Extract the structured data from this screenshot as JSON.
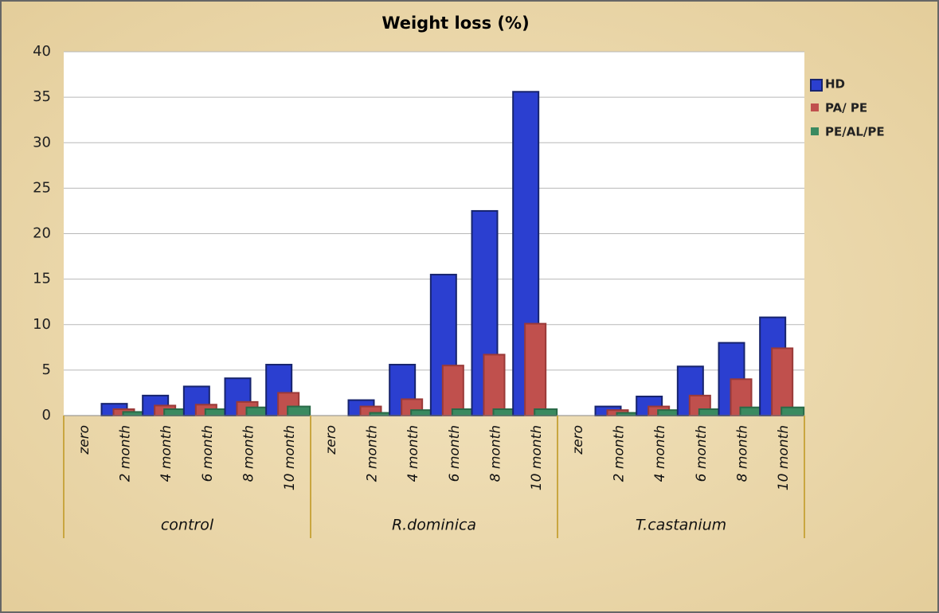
{
  "chart_data": {
    "type": "bar",
    "title": "Weight loss (%)",
    "categories": [
      "zero",
      "2 month",
      "4 month",
      "6 month",
      "8 month",
      "10 month",
      "zero",
      "2 month",
      "4 month",
      "6 month",
      "8 month",
      "10 month",
      "zero",
      "2 month",
      "4 month",
      "6 month",
      "8 month",
      "10 month"
    ],
    "groups": [
      "control",
      "R.dominica",
      "T.castanium"
    ],
    "series": [
      {
        "name": "HD",
        "color": "#2b3fd0",
        "values": [
          0,
          1.3,
          2.2,
          3.2,
          4.1,
          5.6,
          0,
          1.7,
          5.6,
          15.5,
          22.5,
          35.6,
          0,
          1.0,
          2.1,
          5.4,
          8.0,
          10.8
        ]
      },
      {
        "name": "PA/ PE",
        "color": "#c0504d",
        "values": [
          0,
          0.7,
          1.1,
          1.2,
          1.5,
          2.5,
          0,
          1.0,
          1.8,
          5.5,
          6.7,
          10.1,
          0,
          0.6,
          1.0,
          2.2,
          4.0,
          7.4
        ]
      },
      {
        "name": "PE/AL/PE",
        "color": "#3a8a60",
        "values": [
          0,
          0.4,
          0.7,
          0.7,
          0.9,
          1.0,
          0,
          0.3,
          0.6,
          0.7,
          0.7,
          0.7,
          0,
          0.3,
          0.6,
          0.7,
          0.9,
          0.9
        ]
      }
    ],
    "ylim": [
      0,
      40
    ],
    "yticks": [
      0,
      5,
      10,
      15,
      20,
      25,
      30,
      35,
      40
    ],
    "grid": true,
    "legend": "right"
  }
}
